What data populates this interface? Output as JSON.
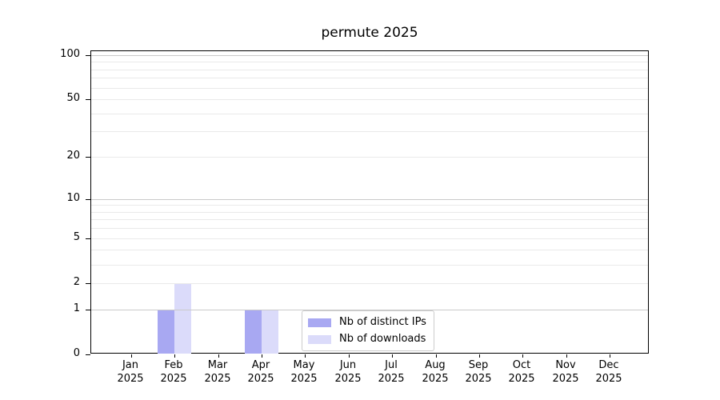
{
  "chart_data": {
    "type": "bar",
    "title": "permute 2025",
    "categories": [
      "Jan",
      "Feb",
      "Mar",
      "Apr",
      "May",
      "Jun",
      "Jul",
      "Aug",
      "Sep",
      "Oct",
      "Nov",
      "Dec"
    ],
    "year_label": "2025",
    "series": [
      {
        "name": "Nb of distinct IPs",
        "color": "#a8a8f2",
        "values": [
          0,
          1,
          0,
          1,
          0,
          0,
          0,
          0,
          0,
          0,
          0,
          0
        ]
      },
      {
        "name": "Nb of downloads",
        "color": "#dbdbfa",
        "values": [
          0,
          2,
          0,
          1,
          0,
          0,
          0,
          0,
          0,
          0,
          0,
          0
        ]
      }
    ],
    "y_scale": "log1p",
    "y_ticks": [
      0,
      1,
      2,
      5,
      10,
      20,
      50,
      100
    ],
    "ylim": [
      0,
      106
    ],
    "xlabel": "",
    "ylabel": "",
    "grid": {
      "minor_values": [
        2,
        3,
        4,
        5,
        6,
        7,
        8,
        9,
        20,
        30,
        40,
        50,
        60,
        70,
        80,
        90
      ],
      "major_values": [
        1,
        10,
        100
      ],
      "minor_color": "#eaeaea",
      "major_color": "#c9c9c9"
    },
    "legend_position": "lower-center",
    "axis_color": "#000000",
    "background": "#ffffff"
  }
}
